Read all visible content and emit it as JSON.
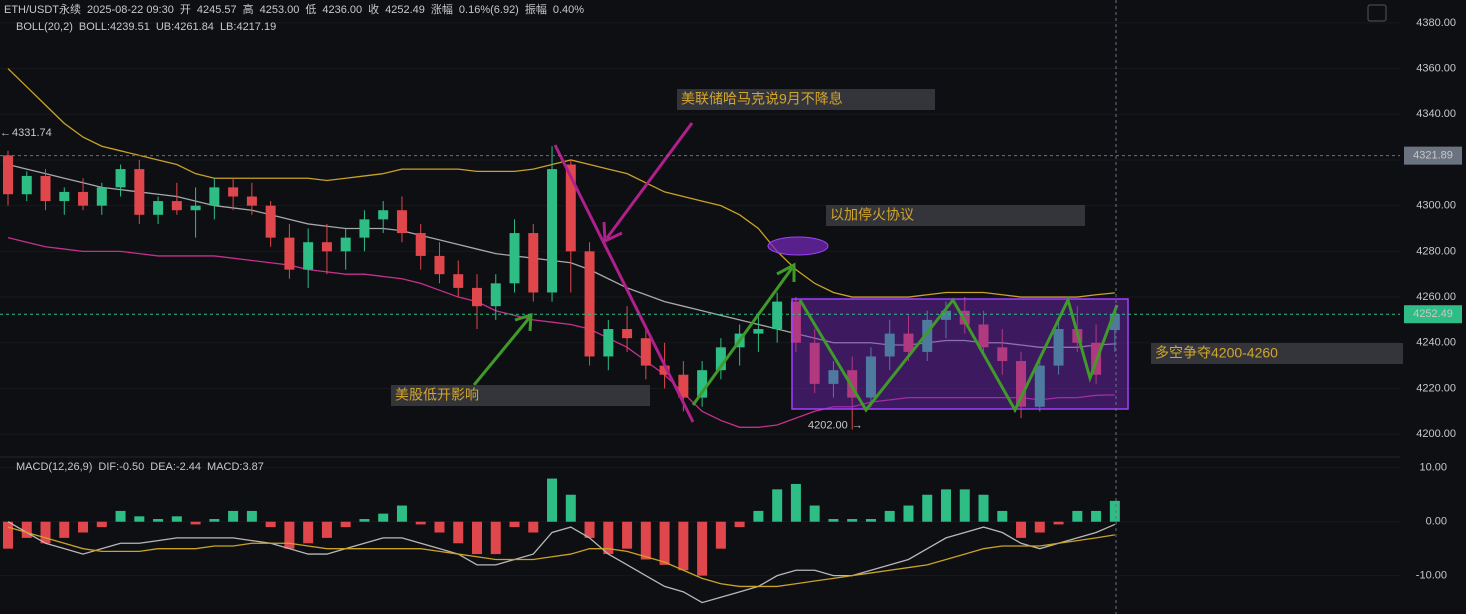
{
  "header": {
    "items": [
      {
        "text": "ETH/USDT永续",
        "color": "#c8c8c8"
      },
      {
        "text": "2025-08-22 09:30",
        "color": "#c8c8c8"
      },
      {
        "text": "开",
        "color": "#c8c8c8"
      },
      {
        "text": "4245.57",
        "color": "#2ebd85"
      },
      {
        "text": "高",
        "color": "#c8c8c8"
      },
      {
        "text": "4253.00",
        "color": "#2ebd85"
      },
      {
        "text": "低",
        "color": "#c8c8c8"
      },
      {
        "text": "4236.00",
        "color": "#2ebd85"
      },
      {
        "text": "收",
        "color": "#c8c8c8"
      },
      {
        "text": "4252.49",
        "color": "#2ebd85"
      },
      {
        "text": "涨幅",
        "color": "#c8c8c8"
      },
      {
        "text": "0.16%(6.92)",
        "color": "#2ebd85"
      },
      {
        "text": "振幅",
        "color": "#c8c8c8"
      },
      {
        "text": "0.40%",
        "color": "#2ebd85"
      }
    ]
  },
  "chart_data": [
    {
      "type": "candlestick",
      "legend": [
        {
          "text": "BOLL(20,2)",
          "color": "#c8c8c8"
        },
        {
          "text": "BOLL:4239.51",
          "color": "#e8e8e8"
        },
        {
          "text": "UB:4261.84",
          "color": "#e0c030"
        },
        {
          "text": "LB:4217.19",
          "color": "#e040a0"
        }
      ],
      "ylim": [
        4190,
        4390
      ],
      "yticks": [
        {
          "value": 4200,
          "label": "4200.00"
        },
        {
          "value": 4220,
          "label": "4220.00"
        },
        {
          "value": 4240,
          "label": "4240.00"
        },
        {
          "value": 4260,
          "label": "4260.00"
        },
        {
          "value": 4280,
          "label": "4280.00"
        },
        {
          "value": 4300,
          "label": "4300.00"
        },
        {
          "value": 4320,
          "label": "4320.00"
        },
        {
          "value": 4340,
          "label": "4340.00"
        },
        {
          "value": 4360,
          "label": "4360.00"
        },
        {
          "value": 4380,
          "label": "4380.00"
        }
      ],
      "grid": true,
      "up_color": "#2ebd85",
      "down_color": "#e0474c",
      "open": [
        4322,
        4305,
        4313,
        4302,
        4306,
        4300,
        4308,
        4316,
        4296,
        4302,
        4298,
        4300,
        4308,
        4304,
        4300,
        4286,
        4272,
        4284,
        4280,
        4286,
        4294,
        4298,
        4288,
        4278,
        4270,
        4264,
        4256,
        4266,
        4288,
        4262,
        4318,
        4280,
        4234,
        4246,
        4242,
        4230,
        4226,
        4216,
        4228,
        4238,
        4244,
        4246,
        4258,
        4240,
        4222,
        4228,
        4216,
        4234,
        4244,
        4236,
        4250,
        4254,
        4248,
        4238,
        4232,
        4212,
        4230,
        4246,
        4240,
        4245.57
      ],
      "high": [
        4324,
        4315,
        4316,
        4308,
        4312,
        4310,
        4318,
        4320,
        4304,
        4310,
        4308,
        4312,
        4312,
        4310,
        4302,
        4292,
        4290,
        4292,
        4290,
        4298,
        4302,
        4304,
        4292,
        4284,
        4276,
        4270,
        4270,
        4294,
        4292,
        4326,
        4320,
        4284,
        4250,
        4256,
        4248,
        4240,
        4232,
        4232,
        4242,
        4248,
        4252,
        4262,
        4260,
        4246,
        4232,
        4234,
        4238,
        4250,
        4252,
        4254,
        4258,
        4260,
        4254,
        4246,
        4236,
        4234,
        4250,
        4256,
        4248,
        4253
      ],
      "low": [
        4300,
        4302,
        4298,
        4296,
        4298,
        4296,
        4304,
        4292,
        4292,
        4296,
        4286,
        4294,
        4298,
        4296,
        4282,
        4268,
        4264,
        4270,
        4272,
        4280,
        4288,
        4284,
        4272,
        4266,
        4260,
        4246,
        4250,
        4262,
        4258,
        4258,
        4262,
        4230,
        4228,
        4236,
        4224,
        4220,
        4210,
        4212,
        4224,
        4230,
        4236,
        4240,
        4236,
        4218,
        4216,
        4202,
        4212,
        4228,
        4232,
        4232,
        4242,
        4244,
        4234,
        4226,
        4207,
        4210,
        4226,
        4236,
        4222,
        4236
      ],
      "close": [
        4305,
        4313,
        4302,
        4306,
        4300,
        4308,
        4316,
        4296,
        4302,
        4298,
        4300,
        4308,
        4304,
        4300,
        4286,
        4272,
        4284,
        4280,
        4286,
        4294,
        4298,
        4288,
        4278,
        4270,
        4264,
        4256,
        4266,
        4288,
        4262,
        4316,
        4280,
        4234,
        4246,
        4242,
        4230,
        4226,
        4216,
        4228,
        4238,
        4244,
        4246,
        4258,
        4240,
        4222,
        4228,
        4216,
        4234,
        4244,
        4236,
        4250,
        4254,
        4248,
        4238,
        4232,
        4212,
        4230,
        4246,
        4240,
        4226,
        4252.49
      ],
      "series": [
        {
          "name": "UB",
          "color": "#c9a227",
          "values": [
            4360,
            4352,
            4344,
            4336,
            4330,
            4326,
            4324,
            4322,
            4320,
            4318,
            4314,
            4312,
            4312,
            4312,
            4312,
            4312,
            4312,
            4311,
            4312,
            4313,
            4314,
            4316,
            4316,
            4316,
            4316,
            4315,
            4315,
            4315,
            4316,
            4318,
            4320,
            4318,
            4316,
            4314,
            4310,
            4306,
            4304,
            4302,
            4300,
            4296,
            4290,
            4280,
            4272,
            4266,
            4262,
            4260,
            4260,
            4260,
            4260,
            4261,
            4262,
            4262,
            4262,
            4261,
            4260,
            4260,
            4260,
            4260,
            4261,
            4261.84
          ]
        },
        {
          "name": "BOLL",
          "color": "#a8a8a8",
          "values": [
            4318,
            4316,
            4314,
            4312,
            4310,
            4308,
            4307,
            4306,
            4305,
            4304,
            4302,
            4300,
            4299,
            4298,
            4296,
            4294,
            4292,
            4291,
            4290,
            4290,
            4290,
            4289,
            4287,
            4285,
            4283,
            4281,
            4279,
            4278,
            4277,
            4276,
            4275,
            4272,
            4268,
            4264,
            4261,
            4258,
            4256,
            4254,
            4252,
            4250,
            4248,
            4246,
            4244,
            4242,
            4240,
            4240,
            4240,
            4239,
            4239,
            4240,
            4241,
            4241,
            4240,
            4240,
            4239,
            4238,
            4238,
            4238,
            4239,
            4239.51
          ]
        },
        {
          "name": "LB",
          "color": "#c5308f",
          "values": [
            4286,
            4284,
            4282,
            4281,
            4280,
            4280,
            4280,
            4279,
            4278,
            4278,
            4278,
            4278,
            4277,
            4276,
            4275,
            4274,
            4272,
            4271,
            4270,
            4270,
            4269,
            4268,
            4266,
            4263,
            4260,
            4258,
            4254,
            4252,
            4250,
            4249,
            4248,
            4246,
            4242,
            4238,
            4232,
            4226,
            4218,
            4210,
            4206,
            4203,
            4203,
            4204,
            4207,
            4210,
            4212,
            4212,
            4214,
            4215,
            4216,
            4216,
            4216,
            4216,
            4216,
            4216,
            4216,
            4215,
            4216,
            4216,
            4217,
            4217.19
          ]
        }
      ],
      "price_labels": [
        {
          "value": 4321.89,
          "label": "4321.89",
          "color": "#6b7280"
        },
        {
          "value": 4252.49,
          "label": "4252.49",
          "color": "#2ebd85"
        }
      ],
      "extremes": [
        {
          "value": 4331.74,
          "label": "4331.74"
        },
        {
          "value": 4202.0,
          "label": "4202.00"
        }
      ],
      "annotations": [
        "美联储哈马克说9月不降息",
        "以加停火协议",
        "美股低开影响",
        "多空争夺4200-4260"
      ]
    },
    {
      "type": "macd",
      "legend": [
        {
          "text": "MACD(12,26,9)",
          "color": "#c8c8c8"
        },
        {
          "text": "DIF:-0.50",
          "color": "#e8e8e8"
        },
        {
          "text": "DEA:-2.44",
          "color": "#e0c030"
        },
        {
          "text": "MACD:3.87",
          "color": "#2ebd85"
        }
      ],
      "ylim": [
        -16,
        12
      ],
      "yticks": [
        {
          "value": -10,
          "label": "-10.00"
        },
        {
          "value": 0,
          "label": "0.00"
        },
        {
          "value": 10,
          "label": "10.00"
        }
      ],
      "up_color": "#2ebd85",
      "down_color": "#e0474c",
      "values": [
        -5,
        -3,
        -4,
        -3,
        -2,
        -1,
        2,
        1,
        0.5,
        1,
        -0.5,
        0.5,
        2,
        2,
        -1,
        -5,
        -4,
        -3,
        -1,
        0.5,
        1.5,
        3,
        -0.5,
        -2,
        -4,
        -6,
        -6,
        -1,
        -2,
        8,
        5,
        -3,
        -6,
        -5,
        -7,
        -8,
        -9,
        -10,
        -5,
        -1,
        2,
        6,
        7,
        3,
        0.5,
        0.5,
        0.5,
        2,
        3,
        5,
        6,
        6,
        5,
        2,
        -3,
        -2,
        -0.5,
        2,
        2,
        3.87
      ],
      "series": [
        {
          "name": "DIF",
          "color": "#b8b8b8",
          "values": [
            0,
            -2,
            -4,
            -5,
            -6,
            -5,
            -4,
            -4,
            -3.5,
            -3,
            -3,
            -3,
            -3,
            -3.5,
            -4,
            -5,
            -6,
            -6,
            -5,
            -4,
            -3,
            -3,
            -4,
            -5,
            -6,
            -8,
            -8,
            -7,
            -6,
            -2,
            -1,
            -3,
            -6,
            -8,
            -10,
            -12,
            -13,
            -15,
            -14,
            -13,
            -12,
            -10,
            -9,
            -9,
            -10,
            -10,
            -9,
            -8,
            -7,
            -5,
            -3,
            -2,
            -1,
            -2,
            -4,
            -5,
            -4,
            -3,
            -2,
            -0.5
          ]
        },
        {
          "name": "DEA",
          "color": "#c9a227",
          "values": [
            -1,
            -2,
            -3,
            -4,
            -5,
            -5.5,
            -5.5,
            -5.5,
            -5,
            -5,
            -5,
            -4.5,
            -4.5,
            -4,
            -4,
            -4,
            -4.5,
            -5,
            -5,
            -5,
            -5,
            -5,
            -5,
            -5.5,
            -6,
            -6.5,
            -7,
            -7,
            -7,
            -6.5,
            -6,
            -5,
            -5,
            -5.5,
            -6.5,
            -7.5,
            -9,
            -10.5,
            -11.5,
            -12,
            -12,
            -12,
            -11.5,
            -11,
            -10.5,
            -10,
            -9.5,
            -9,
            -8.5,
            -8,
            -7,
            -6,
            -5,
            -4.5,
            -4.5,
            -4.5,
            -4,
            -3.5,
            -3,
            -2.44
          ]
        }
      ]
    }
  ]
}
